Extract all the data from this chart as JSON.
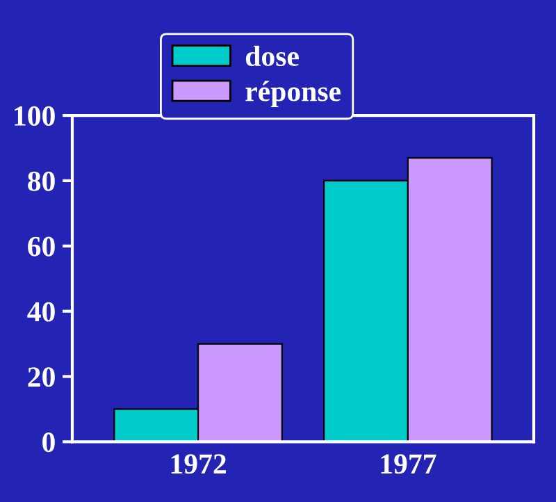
{
  "chart_data": {
    "type": "bar",
    "categories": [
      "1972",
      "1977"
    ],
    "series": [
      {
        "name": "dose",
        "color": "#00cccc",
        "values": [
          10,
          80
        ]
      },
      {
        "name": "réponse",
        "color": "#cc99ff",
        "values": [
          30,
          87
        ]
      }
    ],
    "ylim": [
      0,
      100
    ],
    "yticks": [
      0,
      20,
      40,
      60,
      80,
      100
    ],
    "grid": false,
    "legend": "top"
  }
}
